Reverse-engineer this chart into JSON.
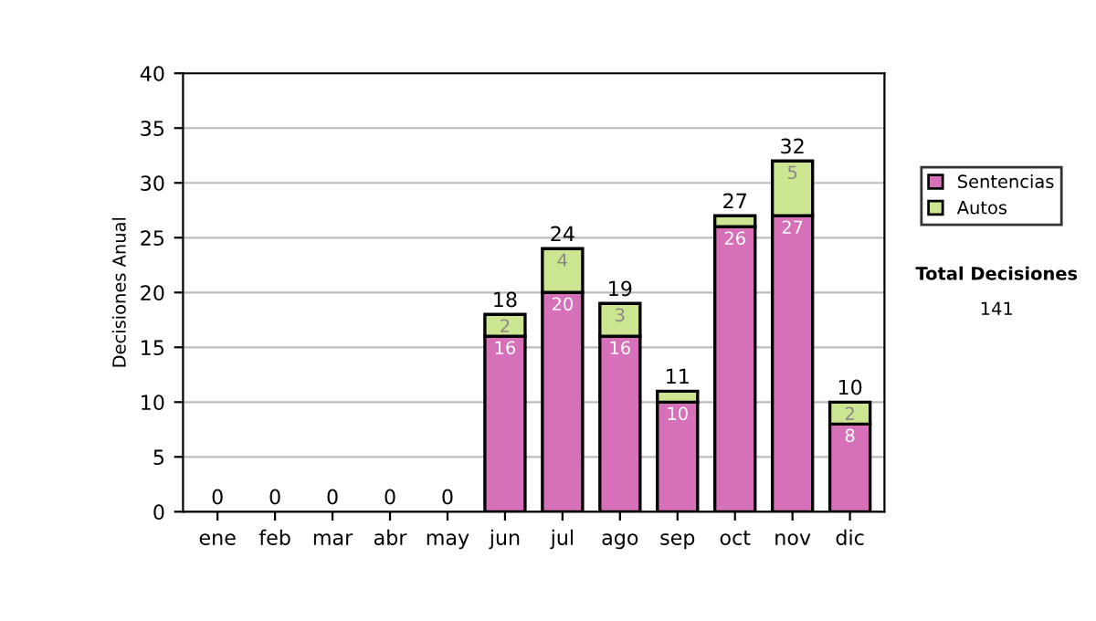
{
  "chart_data": {
    "type": "bar",
    "stacked": true,
    "ylabel": "Decisiones Anual",
    "categories": [
      "ene",
      "feb",
      "mar",
      "abr",
      "may",
      "jun",
      "jul",
      "ago",
      "sep",
      "oct",
      "nov",
      "dic"
    ],
    "series": [
      {
        "name": "Sentencias",
        "color": "#d670b8",
        "values": [
          0,
          0,
          0,
          0,
          0,
          16,
          20,
          16,
          10,
          26,
          27,
          8
        ],
        "value_labels": [
          null,
          null,
          null,
          null,
          null,
          "16",
          "20",
          "16",
          "10",
          "26",
          "27",
          "8"
        ]
      },
      {
        "name": "Autos",
        "color": "#cce590",
        "values": [
          0,
          0,
          0,
          0,
          0,
          2,
          4,
          3,
          1,
          1,
          5,
          2
        ],
        "value_labels": [
          null,
          null,
          null,
          null,
          null,
          "2",
          "4",
          "3",
          null,
          null,
          "5",
          "2"
        ]
      }
    ],
    "totals": [
      "0",
      "0",
      "0",
      "0",
      "0",
      "18",
      "24",
      "19",
      "11",
      "27",
      "32",
      "10"
    ],
    "ylim": [
      0,
      40
    ],
    "yticks": [
      0,
      5,
      10,
      15,
      20,
      25,
      30,
      35,
      40
    ],
    "grid": "y",
    "legend": "right",
    "annotations": [
      "Total Decisiones",
      "141"
    ]
  }
}
